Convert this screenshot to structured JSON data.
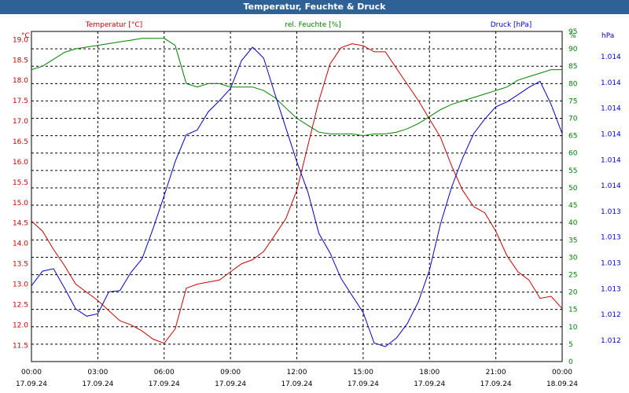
{
  "window": {
    "title": "Temperatur, Feuchte & Druck"
  },
  "colors": {
    "temperature": "#cc0000",
    "humidity": "#008000",
    "pressure": "#0000cc",
    "titlebar": "#2e6296"
  },
  "chart_data": {
    "type": "line",
    "title": "Temperatur, Feuchte & Druck",
    "grid": true,
    "x_ticks": [
      {
        "time": "00:00",
        "date": "17.09.24"
      },
      {
        "time": "03:00",
        "date": "17.09.24"
      },
      {
        "time": "06:00",
        "date": "17.09.24"
      },
      {
        "time": "09:00",
        "date": "17.09.24"
      },
      {
        "time": "12:00",
        "date": "17.09.24"
      },
      {
        "time": "15:00",
        "date": "17.09.24"
      },
      {
        "time": "18:00",
        "date": "17.09.24"
      },
      {
        "time": "21:00",
        "date": "17.09.24"
      },
      {
        "time": "00:00",
        "date": "18.09.24"
      }
    ],
    "x_hours": [
      0,
      0.5,
      1,
      1.5,
      2,
      2.5,
      3,
      3.5,
      4,
      4.5,
      5,
      5.5,
      6,
      6.5,
      7,
      7.5,
      8,
      8.5,
      9,
      9.5,
      10,
      10.5,
      11,
      11.5,
      12,
      12.5,
      13,
      13.5,
      14,
      14.5,
      15,
      15.5,
      16,
      16.5,
      17,
      17.5,
      18,
      18.5,
      19,
      19.5,
      20,
      20.5,
      21,
      21.5,
      22,
      22.5,
      23,
      23.5,
      24
    ],
    "axes": {
      "temperature": {
        "label": "Temperatur [°C]",
        "unit": "°C",
        "ylim": [
          11.1,
          19.2
        ],
        "ticks": [
          "11.5",
          "12.0",
          "12.5",
          "13.0",
          "13.5",
          "14.0",
          "14.5",
          "15.0",
          "15.5",
          "16.0",
          "16.5",
          "17.0",
          "17.5",
          "18.0",
          "18.5",
          "19.0"
        ]
      },
      "humidity": {
        "label": "rel. Feuchte [%]",
        "unit": "%",
        "ylim": [
          0,
          95
        ],
        "ticks": [
          "0",
          "5",
          "10",
          "15",
          "20",
          "25",
          "30",
          "35",
          "40",
          "45",
          "50",
          "55",
          "60",
          "65",
          "70",
          "75",
          "80",
          "85",
          "90",
          "95"
        ]
      },
      "pressure": {
        "label": "Druck [hPa]",
        "unit": "hPa",
        "ticks": [
          "1.012",
          "1.012",
          "1.013",
          "1.013",
          "1.013",
          "1.013",
          "1.014",
          "1.014",
          "1.014",
          "1.014",
          "1.014",
          "1.014"
        ]
      }
    },
    "series": [
      {
        "name": "Temperatur [°C]",
        "axis": "temperature",
        "values": [
          14.55,
          14.3,
          13.85,
          13.45,
          13.0,
          12.8,
          12.6,
          12.35,
          12.1,
          12.0,
          11.85,
          11.65,
          11.55,
          11.9,
          12.9,
          13.0,
          13.05,
          13.1,
          13.3,
          13.5,
          13.6,
          13.8,
          14.2,
          14.6,
          15.3,
          16.4,
          17.5,
          18.4,
          18.8,
          18.9,
          18.85,
          18.7,
          18.7,
          18.3,
          17.9,
          17.5,
          17.05,
          16.6,
          15.9,
          15.3,
          14.9,
          14.75,
          14.3,
          13.7,
          13.3,
          13.1,
          12.65,
          12.7,
          12.4
        ]
      },
      {
        "name": "rel. Feuchte [%]",
        "axis": "humidity",
        "values": [
          84,
          85,
          87,
          89,
          90,
          90.5,
          91,
          91.5,
          92,
          92.5,
          93,
          93,
          93,
          91,
          80,
          79,
          80,
          80,
          79,
          79,
          79,
          78,
          76,
          73,
          70,
          68,
          66,
          65.5,
          65.5,
          65.5,
          65,
          65.5,
          65.5,
          66,
          67,
          68.5,
          70.5,
          72.5,
          74,
          75,
          76,
          77,
          78,
          79,
          81,
          82,
          83,
          84,
          84
        ]
      },
      {
        "name": "Druck [hPa]",
        "axis": "pressure",
        "values": [
          1.01287,
          1.01299,
          1.01301,
          1.01285,
          1.01268,
          1.01262,
          1.01264,
          1.01282,
          1.01283,
          1.01298,
          1.01309,
          1.01334,
          1.01361,
          1.01389,
          1.01411,
          1.01415,
          1.0143,
          1.01439,
          1.01449,
          1.01472,
          1.01483,
          1.01474,
          1.01445,
          1.01417,
          1.01389,
          1.01364,
          1.0133,
          1.01314,
          1.01293,
          1.01279,
          1.01265,
          1.0124,
          1.01237,
          1.01244,
          1.01256,
          1.01274,
          1.013,
          1.01338,
          1.01368,
          1.01392,
          1.01412,
          1.01424,
          1.01434,
          1.01438,
          1.01444,
          1.0145,
          1.01455,
          1.01436,
          1.01412
        ]
      }
    ]
  }
}
